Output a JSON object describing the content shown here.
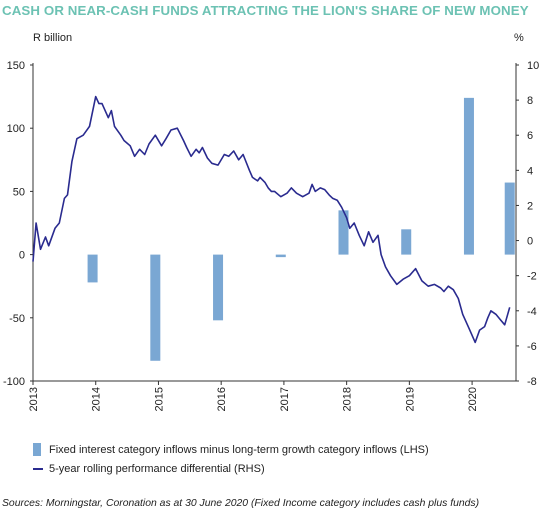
{
  "title": "CASH OR NEAR-CASH FUNDS ATTRACTING THE LION'S SHARE OF NEW MONEY",
  "left_unit": "R billion",
  "right_unit": "%",
  "source": "Sources: Morningstar, Coronation as at 30 June 2020 (Fixed Income category includes cash plus funds)",
  "colors": {
    "bars": "#7aa7d3",
    "line": "#2a2b8f",
    "title": "#6cc2b3"
  },
  "chart_data": {
    "type": "bar",
    "left_axis": {
      "label": "R billion",
      "ylim": [
        -100,
        150
      ],
      "ticks": [
        "150",
        "100",
        "50",
        "0",
        "-50",
        "-100"
      ]
    },
    "right_axis": {
      "label": "%",
      "ylim": [
        -8,
        10
      ],
      "ticks": [
        "10",
        "8",
        "6",
        "4",
        "2",
        "0",
        "-2",
        "-4",
        "-6",
        "-8"
      ]
    },
    "x_axis": {
      "xlim": [
        2013,
        2020.7
      ],
      "ticks": [
        "2013",
        "2014",
        "2015",
        "2016",
        "2017",
        "2018",
        "2019",
        "2020"
      ]
    },
    "grid": false,
    "legend_position": "bottom",
    "series": [
      {
        "name": "Fixed interest category inflows minus long-term growth category inflows (LHS)",
        "type": "bar",
        "axis": "left",
        "x": [
          2013.95,
          2014.95,
          2015.95,
          2016.95,
          2017.95,
          2018.95,
          2019.95,
          2020.6
        ],
        "values": [
          -22,
          -84,
          -52,
          -2,
          35,
          20,
          124,
          57
        ]
      },
      {
        "name": "5-year rolling performance differential (RHS)",
        "type": "line",
        "axis": "right",
        "x": [
          2013.0,
          2013.05,
          2013.12,
          2013.2,
          2013.25,
          2013.35,
          2013.42,
          2013.5,
          2013.55,
          2013.62,
          2013.7,
          2013.8,
          2013.9,
          2014.0,
          2014.05,
          2014.1,
          2014.2,
          2014.25,
          2014.3,
          2014.4,
          2014.45,
          2014.55,
          2014.62,
          2014.7,
          2014.78,
          2014.85,
          2014.95,
          2015.05,
          2015.12,
          2015.2,
          2015.3,
          2015.4,
          2015.45,
          2015.52,
          2015.6,
          2015.65,
          2015.7,
          2015.78,
          2015.85,
          2015.95,
          2016.05,
          2016.12,
          2016.2,
          2016.28,
          2016.35,
          2016.45,
          2016.5,
          2016.58,
          2016.62,
          2016.7,
          2016.75,
          2016.8,
          2016.85,
          2016.95,
          2017.05,
          2017.12,
          2017.2,
          2017.3,
          2017.4,
          2017.45,
          2017.5,
          2017.58,
          2017.65,
          2017.72,
          2017.78,
          2017.85,
          2017.92,
          2018.0,
          2018.05,
          2018.12,
          2018.2,
          2018.28,
          2018.35,
          2018.42,
          2018.5,
          2018.55,
          2018.62,
          2018.7,
          2018.8,
          2018.9,
          2019.0,
          2019.1,
          2019.2,
          2019.3,
          2019.4,
          2019.5,
          2019.55,
          2019.62,
          2019.7,
          2019.78,
          2019.85,
          2019.95,
          2020.05,
          2020.12,
          2020.2,
          2020.25,
          2020.3,
          2020.38,
          2020.45,
          2020.52,
          2020.6
        ],
        "values": [
          -1.2,
          1.0,
          -0.5,
          0.2,
          -0.3,
          0.7,
          1.0,
          2.4,
          2.6,
          4.5,
          5.8,
          6.0,
          6.5,
          8.2,
          7.8,
          7.8,
          7.0,
          7.4,
          6.5,
          6.0,
          5.7,
          5.4,
          4.8,
          5.2,
          4.9,
          5.5,
          6.0,
          5.4,
          5.8,
          6.3,
          6.4,
          5.7,
          5.3,
          4.8,
          5.2,
          5.0,
          5.3,
          4.7,
          4.4,
          4.3,
          4.9,
          4.8,
          5.1,
          4.6,
          4.9,
          4.0,
          3.6,
          3.4,
          3.6,
          3.3,
          3.0,
          2.8,
          2.8,
          2.5,
          2.7,
          3.0,
          2.7,
          2.5,
          2.7,
          3.2,
          2.8,
          3.0,
          2.9,
          2.6,
          2.4,
          2.3,
          1.9,
          1.3,
          0.7,
          1.0,
          0.3,
          -0.3,
          0.5,
          -0.1,
          0.3,
          -0.8,
          -1.5,
          -2.0,
          -2.5,
          -2.2,
          -2.0,
          -1.6,
          -2.3,
          -2.6,
          -2.5,
          -2.7,
          -2.9,
          -2.6,
          -2.8,
          -3.3,
          -4.2,
          -5.0,
          -5.8,
          -5.1,
          -4.9,
          -4.4,
          -4.0,
          -4.2,
          -4.5,
          -4.8,
          -3.8
        ]
      }
    ]
  },
  "legend": {
    "bars_label": "Fixed interest category inflows minus long-term growth category inflows (LHS)",
    "line_label": "5-year rolling performance differential (RHS)"
  }
}
